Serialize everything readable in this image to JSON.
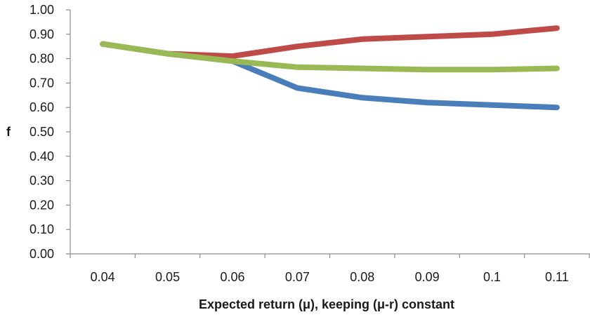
{
  "chart_data": {
    "type": "line",
    "title": "",
    "xlabel": "Expected return (μ), keeping (μ-r) constant",
    "ylabel": "f",
    "categories": [
      "0.04",
      "0.05",
      "0.06",
      "0.07",
      "0.08",
      "0.09",
      "0.1",
      "0.11"
    ],
    "yticks": [
      "0.00",
      "0.10",
      "0.20",
      "0.30",
      "0.40",
      "0.50",
      "0.60",
      "0.70",
      "0.80",
      "0.90",
      "1.00"
    ],
    "ylim": [
      0,
      1
    ],
    "grid": false,
    "legend": "none",
    "series": [
      {
        "color": "#4a7ebb",
        "values": [
          0.86,
          0.82,
          0.79,
          0.68,
          0.64,
          0.62,
          0.61,
          0.6
        ]
      },
      {
        "color": "#be4b48",
        "values": [
          0.86,
          0.82,
          0.81,
          0.85,
          0.88,
          0.89,
          0.9,
          0.925
        ]
      },
      {
        "color": "#98b954",
        "values": [
          0.86,
          0.82,
          0.79,
          0.765,
          0.76,
          0.755,
          0.755,
          0.76
        ]
      }
    ]
  }
}
